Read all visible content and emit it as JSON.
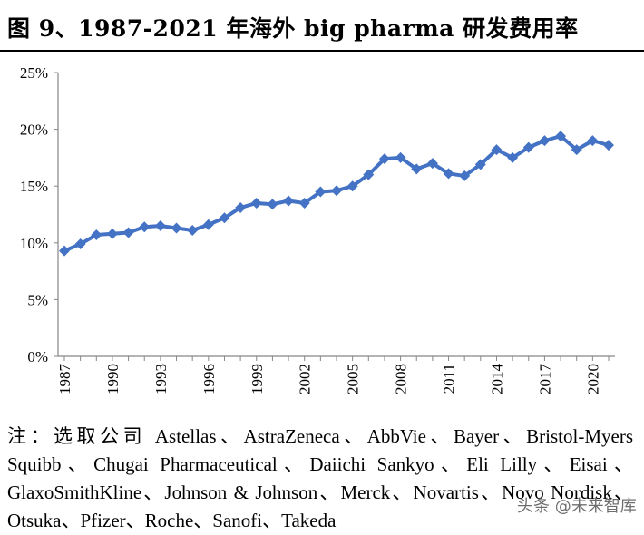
{
  "figure": {
    "title": "图 9、1987-2021 年海外 big pharma 研发费用率"
  },
  "chart_data": {
    "type": "line",
    "title": "",
    "xlabel": "",
    "ylabel": "",
    "x": [
      1987,
      1988,
      1989,
      1990,
      1991,
      1992,
      1993,
      1994,
      1995,
      1996,
      1997,
      1998,
      1999,
      2000,
      2001,
      2002,
      2003,
      2004,
      2005,
      2006,
      2007,
      2008,
      2009,
      2010,
      2011,
      2012,
      2013,
      2014,
      2015,
      2016,
      2017,
      2018,
      2019,
      2020,
      2021
    ],
    "x_tick_labels": [
      "1987",
      "1990",
      "1993",
      "1996",
      "1999",
      "2002",
      "2005",
      "2008",
      "2011",
      "2014",
      "2017",
      "2020"
    ],
    "y_tick_labels": [
      "0%",
      "5%",
      "10%",
      "15%",
      "20%",
      "25%"
    ],
    "ylim": [
      0,
      25
    ],
    "grid": false,
    "series": [
      {
        "values": [
          9.3,
          9.9,
          10.7,
          10.8,
          10.9,
          11.4,
          11.5,
          11.3,
          11.1,
          11.6,
          12.2,
          13.1,
          13.5,
          13.4,
          13.7,
          13.5,
          14.5,
          14.6,
          15.0,
          16.0,
          17.4,
          17.5,
          16.5,
          17.0,
          16.1,
          15.9,
          16.9,
          18.2,
          17.5,
          18.4,
          19.0,
          19.4,
          18.2,
          19.0,
          18.6
        ],
        "color": "#4472C4",
        "marker": "diamond"
      }
    ]
  },
  "note": {
    "text": "注：选取公司 Astellas、AstraZeneca、AbbVie、Bayer、Bristol-Myers Squibb、Chugai Pharmaceutical、Daiichi Sankyo、Eli Lilly、Eisai、GlaxoSmithKline、Johnson & Johnson、Merck、Novartis、Novo Nordisk、Otsuka、Pfizer、Roche、Sanofi、Takeda"
  },
  "watermark": {
    "text": "头条 @未来智库"
  }
}
